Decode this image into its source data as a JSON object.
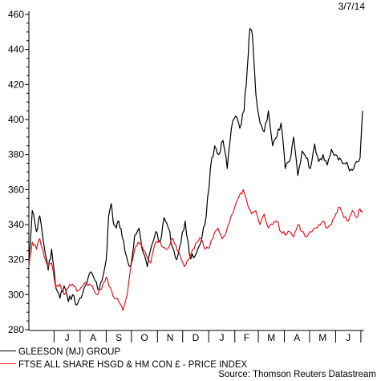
{
  "date_label": "3/7/14",
  "source": "Source: Thomson Reuters Datastream",
  "colors": {
    "series1": "#000000",
    "series2": "#e8141c",
    "axis": "#000000"
  },
  "chart_data": {
    "type": "line",
    "title": "",
    "xlabel": "",
    "ylabel": "",
    "ylim": [
      280,
      460
    ],
    "yticks": [
      280,
      300,
      320,
      340,
      360,
      380,
      400,
      420,
      440,
      460
    ],
    "x_ticks_months": [
      "J",
      "A",
      "S",
      "O",
      "N",
      "D",
      "J",
      "F",
      "M",
      "A",
      "M",
      "J"
    ],
    "x_range": [
      "2013-06-01",
      "2014-07-03"
    ],
    "grid": false,
    "legend_position": "bottom",
    "series": [
      {
        "name": "GLEESON (MJ) GROUP",
        "color": "#000000",
        "dates": [
          "2013-06-01",
          "2013-06-05",
          "2013-06-10",
          "2013-06-14",
          "2013-06-19",
          "2013-06-24",
          "2013-06-28",
          "2013-07-03",
          "2013-07-08",
          "2013-07-13",
          "2013-07-18",
          "2013-07-23",
          "2013-07-28",
          "2013-08-02",
          "2013-08-07",
          "2013-08-12",
          "2013-08-17",
          "2013-08-22",
          "2013-08-27",
          "2013-09-01",
          "2013-09-04",
          "2013-09-07",
          "2013-09-10",
          "2013-09-13",
          "2013-09-16",
          "2013-09-20",
          "2013-09-25",
          "2013-09-30",
          "2013-10-05",
          "2013-10-10",
          "2013-10-15",
          "2013-10-20",
          "2013-10-25",
          "2013-10-30",
          "2013-11-04",
          "2013-11-09",
          "2013-11-14",
          "2013-11-19",
          "2013-11-24",
          "2013-11-29",
          "2013-12-04",
          "2013-12-09",
          "2013-12-14",
          "2013-12-19",
          "2013-12-24",
          "2013-12-29",
          "2014-01-03",
          "2014-01-08",
          "2014-01-13",
          "2014-01-18",
          "2014-01-23",
          "2014-01-28",
          "2014-02-02",
          "2014-02-07",
          "2014-02-12",
          "2014-02-16",
          "2014-02-19",
          "2014-02-22",
          "2014-02-26",
          "2014-03-03",
          "2014-03-08",
          "2014-03-13",
          "2014-03-18",
          "2014-03-23",
          "2014-03-28",
          "2014-04-02",
          "2014-04-07",
          "2014-04-12",
          "2014-04-17",
          "2014-04-22",
          "2014-04-27",
          "2014-05-02",
          "2014-05-07",
          "2014-05-12",
          "2014-05-17",
          "2014-05-22",
          "2014-05-27",
          "2014-06-01",
          "2014-06-06",
          "2014-06-11",
          "2014-06-16",
          "2014-06-21",
          "2014-06-26",
          "2014-06-30",
          "2014-07-03"
        ],
        "values": [
          320,
          348,
          336,
          345,
          328,
          314,
          326,
          304,
          298,
          305,
          296,
          300,
          294,
          298,
          305,
          312,
          310,
          303,
          308,
          320,
          345,
          352,
          340,
          338,
          342,
          333,
          322,
          316,
          334,
          338,
          324,
          316,
          328,
          336,
          330,
          344,
          338,
          327,
          320,
          330,
          342,
          323,
          321,
          326,
          333,
          345,
          372,
          385,
          380,
          388,
          372,
          395,
          402,
          395,
          405,
          430,
          452,
          448,
          415,
          398,
          393,
          405,
          385,
          390,
          398,
          372,
          376,
          390,
          368,
          382,
          378,
          372,
          386,
          376,
          380,
          374,
          383,
          380,
          378,
          375,
          373,
          371,
          376,
          378,
          405
        ]
      },
      {
        "name": "FTSE ALL SHARE HSGD & HM CON £ - PRICE INDEX",
        "color": "#e8141c",
        "dates": [
          "2013-06-01",
          "2013-06-05",
          "2013-06-10",
          "2013-06-14",
          "2013-06-19",
          "2013-06-24",
          "2013-06-28",
          "2013-07-03",
          "2013-07-08",
          "2013-07-13",
          "2013-07-18",
          "2013-07-23",
          "2013-07-28",
          "2013-08-02",
          "2013-08-07",
          "2013-08-12",
          "2013-08-17",
          "2013-08-22",
          "2013-08-27",
          "2013-09-01",
          "2013-09-06",
          "2013-09-11",
          "2013-09-16",
          "2013-09-21",
          "2013-09-26",
          "2013-09-30",
          "2013-10-04",
          "2013-10-09",
          "2013-10-14",
          "2013-10-19",
          "2013-10-24",
          "2013-10-29",
          "2013-11-03",
          "2013-11-08",
          "2013-11-13",
          "2013-11-18",
          "2013-11-23",
          "2013-11-28",
          "2013-12-03",
          "2013-12-08",
          "2013-12-13",
          "2013-12-18",
          "2013-12-23",
          "2013-12-28",
          "2014-01-02",
          "2014-01-07",
          "2014-01-12",
          "2014-01-17",
          "2014-01-22",
          "2014-01-27",
          "2014-02-01",
          "2014-02-06",
          "2014-02-11",
          "2014-02-16",
          "2014-02-21",
          "2014-02-26",
          "2014-03-03",
          "2014-03-08",
          "2014-03-13",
          "2014-03-18",
          "2014-03-23",
          "2014-03-28",
          "2014-04-02",
          "2014-04-07",
          "2014-04-12",
          "2014-04-17",
          "2014-04-22",
          "2014-04-27",
          "2014-05-02",
          "2014-05-07",
          "2014-05-12",
          "2014-05-17",
          "2014-05-22",
          "2014-05-27",
          "2014-06-01",
          "2014-06-06",
          "2014-06-11",
          "2014-06-16",
          "2014-06-21",
          "2014-06-26",
          "2014-06-30",
          "2014-07-03"
        ],
        "values": [
          316,
          330,
          326,
          332,
          322,
          316,
          318,
          304,
          306,
          300,
          304,
          306,
          302,
          304,
          307,
          306,
          303,
          300,
          304,
          310,
          304,
          298,
          296,
          291,
          300,
          315,
          324,
          330,
          327,
          322,
          318,
          329,
          331,
          327,
          326,
          332,
          328,
          322,
          316,
          320,
          326,
          330,
          332,
          326,
          327,
          334,
          338,
          332,
          336,
          344,
          350,
          356,
          360,
          352,
          346,
          348,
          340,
          346,
          338,
          340,
          342,
          336,
          334,
          336,
          333,
          340,
          336,
          333,
          336,
          338,
          340,
          342,
          338,
          340,
          346,
          350,
          344,
          342,
          348,
          344,
          349,
          347
        ]
      }
    ]
  }
}
